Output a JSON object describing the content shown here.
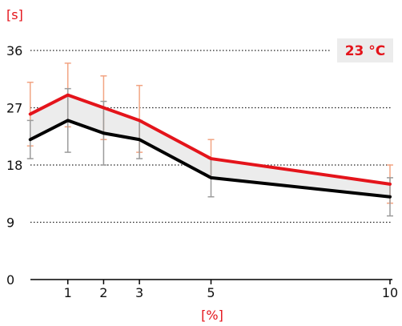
{
  "colors": {
    "red": "#e4141b",
    "black": "#000000",
    "band_fill": "#ececec",
    "red_error": "#f2a482",
    "black_error": "#9b9b9b",
    "grid": "#222222",
    "badge_bg": "#ececec"
  },
  "labels": {
    "y_unit": "[s]",
    "x_unit": "[%]",
    "badge": "23 °C"
  },
  "chart_data": {
    "type": "line",
    "xlabel": "[%]",
    "ylabel": "[s]",
    "xlim": [
      -0.05,
      10
    ],
    "ylim": [
      0,
      36
    ],
    "yticks": [
      0,
      9,
      18,
      27,
      36
    ],
    "xticks": [
      1,
      2,
      3,
      5,
      10
    ],
    "grid": "horizontal dotted",
    "annotation": "23 °C",
    "series": [
      {
        "color": "#e4141b",
        "x": [
          -0.05,
          1,
          2,
          3,
          5,
          10
        ],
        "y": [
          26,
          29,
          27,
          25,
          19,
          15
        ],
        "error": [
          [
            -0.05,
            21,
            31
          ],
          [
            1,
            24,
            34
          ],
          [
            2,
            22,
            32
          ],
          [
            3,
            20,
            30.5
          ],
          [
            5,
            16,
            22
          ],
          [
            10,
            12,
            18
          ]
        ]
      },
      {
        "color": "#000000",
        "x": [
          -0.05,
          1,
          2,
          3,
          5,
          10
        ],
        "y": [
          22,
          25,
          23,
          22,
          16,
          13
        ],
        "error": [
          [
            -0.05,
            19,
            25
          ],
          [
            1,
            20,
            30
          ],
          [
            2,
            18,
            28
          ],
          [
            3,
            19,
            25
          ],
          [
            5,
            13,
            19
          ],
          [
            10,
            10,
            16
          ]
        ]
      }
    ]
  }
}
